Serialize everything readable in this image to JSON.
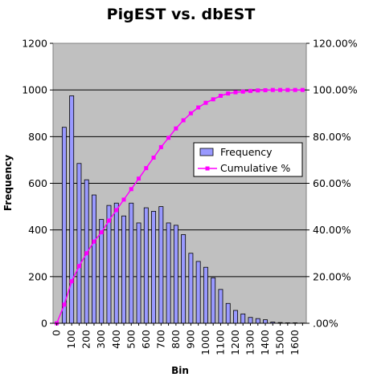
{
  "chart_data": {
    "type": "bar",
    "title": "PigEST vs. dbEST",
    "xlabel": "Bin",
    "ylabel": "Frequency",
    "ylim": [
      0,
      1200
    ],
    "y2lim": [
      0,
      1.2
    ],
    "y_ticks": [
      "0",
      "200",
      "400",
      "600",
      "800",
      "1000",
      "1200"
    ],
    "y2_ticks": [
      ".00%",
      "20.00%",
      "40.00%",
      "60.00%",
      "80.00%",
      "100.00%",
      "120.00%"
    ],
    "x_tick_labels": [
      "0",
      "100",
      "200",
      "300",
      "400",
      "500",
      "600",
      "700",
      "800",
      "900",
      "1000",
      "1100",
      "1200",
      "1300",
      "1400",
      "1500",
      "1600"
    ],
    "grid": true,
    "legend_position": "right",
    "bins": [
      0,
      50,
      100,
      150,
      200,
      250,
      300,
      350,
      400,
      450,
      500,
      550,
      600,
      650,
      700,
      750,
      800,
      850,
      900,
      950,
      1000,
      1050,
      1100,
      1150,
      1200,
      1250,
      1300,
      1350,
      1400,
      1450,
      1500,
      1550,
      1600,
      1650
    ],
    "series": [
      {
        "name": "Frequency",
        "kind": "bar",
        "color": "#9999ff",
        "values": [
          0,
          840,
          975,
          685,
          615,
          550,
          445,
          505,
          515,
          460,
          515,
          430,
          495,
          480,
          500,
          430,
          420,
          380,
          300,
          265,
          240,
          195,
          145,
          85,
          55,
          40,
          25,
          20,
          15,
          5,
          3,
          2,
          2,
          1
        ]
      },
      {
        "name": "Cumulative %",
        "kind": "line",
        "color": "#ff00ff",
        "axis": "right",
        "values": [
          0,
          0.08,
          0.18,
          0.245,
          0.3,
          0.35,
          0.39,
          0.44,
          0.485,
          0.53,
          0.575,
          0.62,
          0.665,
          0.71,
          0.755,
          0.795,
          0.835,
          0.87,
          0.9,
          0.925,
          0.945,
          0.96,
          0.975,
          0.985,
          0.99,
          0.993,
          0.996,
          0.998,
          0.999,
          1.0,
          1.0,
          1.0,
          1.0,
          1.0
        ]
      }
    ]
  }
}
